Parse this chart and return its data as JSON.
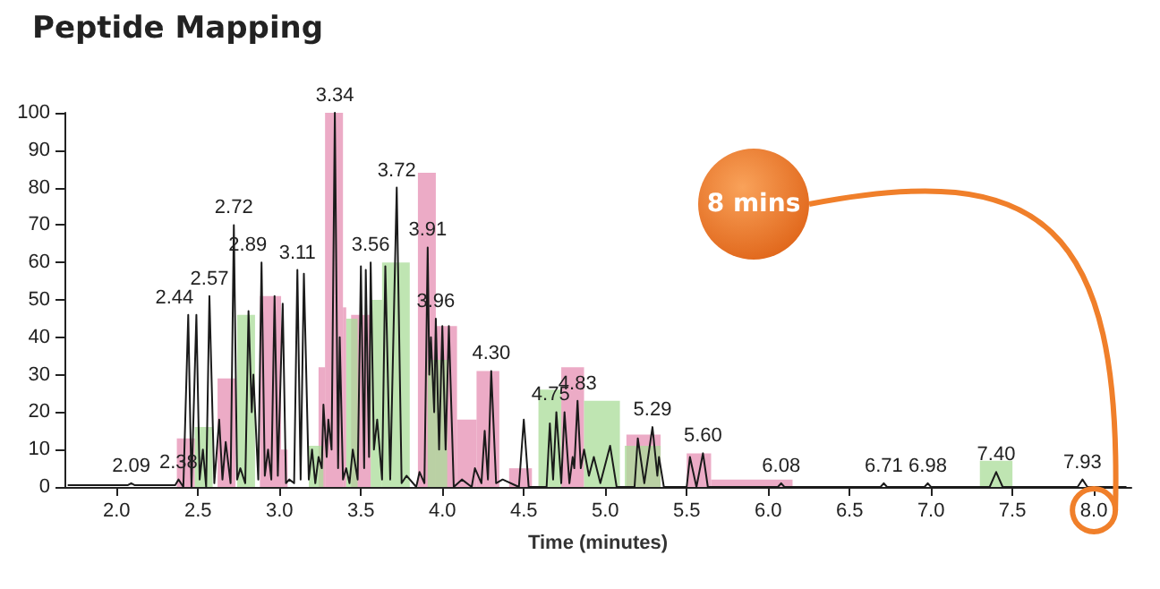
{
  "chart_data": {
    "type": "line",
    "title": "Peptide Mapping",
    "xlabel": "Time (minutes)",
    "xlim": [
      1.68,
      8.23
    ],
    "xticks": [
      {
        "value": 2,
        "label": "2.0"
      },
      {
        "value": 2.5,
        "label": "2.5"
      },
      {
        "value": 3,
        "label": "3.0"
      },
      {
        "value": 3.5,
        "label": "3.5"
      },
      {
        "value": 4,
        "label": "4.0"
      },
      {
        "value": 4.5,
        "label": "4.5"
      },
      {
        "value": 5,
        "label": "5.0"
      },
      {
        "value": 5.5,
        "label": "5.5"
      },
      {
        "value": 6,
        "label": "6.0"
      },
      {
        "value": 6.5,
        "label": "6.5"
      },
      {
        "value": 7,
        "label": "7.0"
      },
      {
        "value": 7.5,
        "label": "7.5"
      },
      {
        "value": 8,
        "label": "8.0"
      }
    ],
    "ylim": [
      0,
      100
    ],
    "yticks": [
      0,
      10,
      20,
      30,
      40,
      50,
      60,
      70,
      80,
      90,
      100
    ],
    "grid": false,
    "marker": "none",
    "line_style": "solid",
    "series": [
      {
        "type": "histogram",
        "color": "#e58fb3",
        "bins": [
          2.37,
          2.48,
          2.62,
          2.73,
          2.88,
          3.01,
          3.05,
          3.24,
          3.28,
          3.39,
          3.41,
          3.44,
          3.56,
          3.85,
          3.96,
          4.09,
          4.21,
          4.35,
          4.41,
          4.55,
          4.73,
          4.87,
          5.13,
          5.34,
          5.5,
          5.65,
          6.15
        ],
        "values": [
          13,
          null,
          29,
          null,
          51,
          10,
          null,
          32,
          100,
          48,
          null,
          46,
          null,
          84,
          43,
          18,
          31,
          null,
          5,
          null,
          32,
          null,
          14,
          null,
          9,
          2
        ]
      },
      {
        "type": "histogram",
        "color": "#a9dc98",
        "bins": [
          2.48,
          2.59,
          2.74,
          2.85,
          3.18,
          3.27,
          3.41,
          3.48,
          3.56,
          3.63,
          3.8,
          3.91,
          4.03,
          4.59,
          4.73,
          4.87,
          5.09,
          5.12,
          5.34,
          7.3,
          7.5
        ],
        "values": [
          16,
          null,
          46,
          null,
          11,
          null,
          45,
          null,
          50,
          60,
          null,
          34,
          null,
          26,
          null,
          23,
          null,
          11,
          null,
          7
        ]
      },
      {
        "type": "line",
        "color": "#1a1a1a",
        "x": [
          1.7,
          2.07,
          2.09,
          2.11,
          2.36,
          2.38,
          2.41,
          2.44,
          2.46,
          2.49,
          2.51,
          2.53,
          2.55,
          2.57,
          2.6,
          2.63,
          2.65,
          2.67,
          2.7,
          2.72,
          2.74,
          2.76,
          2.79,
          2.81,
          2.83,
          2.84,
          2.87,
          2.89,
          2.91,
          2.93,
          2.95,
          2.97,
          2.99,
          3.02,
          3.04,
          3.06,
          3.09,
          3.11,
          3.13,
          3.15,
          3.18,
          3.2,
          3.22,
          3.24,
          3.26,
          3.27,
          3.29,
          3.3,
          3.32,
          3.34,
          3.36,
          3.37,
          3.39,
          3.41,
          3.43,
          3.45,
          3.48,
          3.5,
          3.52,
          3.53,
          3.55,
          3.56,
          3.58,
          3.6,
          3.63,
          3.65,
          3.68,
          3.72,
          3.75,
          3.78,
          3.84,
          3.86,
          3.89,
          3.91,
          3.92,
          3.93,
          3.95,
          3.96,
          3.98,
          4.0,
          4.02,
          4.04,
          4.07,
          4.12,
          4.18,
          4.2,
          4.24,
          4.26,
          4.28,
          4.3,
          4.33,
          4.37,
          4.47,
          4.5,
          4.53,
          4.64,
          4.66,
          4.68,
          4.7,
          4.73,
          4.75,
          4.78,
          4.8,
          4.81,
          4.83,
          4.85,
          4.87,
          4.9,
          4.93,
          4.97,
          5.03,
          5.07,
          5.18,
          5.2,
          5.24,
          5.29,
          5.32,
          5.33,
          5.36,
          5.5,
          5.52,
          5.56,
          5.6,
          5.63,
          6.06,
          6.08,
          6.1,
          6.69,
          6.71,
          6.73,
          6.96,
          6.98,
          7.0,
          7.36,
          7.4,
          7.44,
          7.9,
          7.93,
          7.96,
          8.2
        ],
        "values": [
          0.5,
          0.5,
          1,
          0.5,
          0.5,
          2,
          0,
          46,
          0,
          46,
          2,
          10,
          0,
          51,
          1,
          18,
          2,
          12,
          1,
          70,
          2,
          5,
          1,
          47,
          20,
          30,
          2,
          60,
          3,
          10,
          2,
          51,
          3,
          49,
          1,
          2,
          1,
          58,
          2,
          57,
          2,
          10,
          1,
          8,
          5,
          22,
          8,
          18,
          10,
          100,
          5,
          40,
          2,
          5,
          1,
          10,
          2,
          59,
          5,
          58,
          8,
          60,
          10,
          18,
          2,
          59,
          2,
          80,
          1,
          3,
          0,
          4,
          1,
          64,
          30,
          40,
          20,
          45,
          10,
          43,
          10,
          43,
          0,
          2,
          0,
          5,
          1,
          15,
          2,
          31,
          1,
          2,
          0,
          18,
          0,
          0,
          17,
          2,
          20,
          1,
          20,
          1,
          8,
          5,
          23,
          5,
          10,
          3,
          8,
          1,
          11,
          0,
          0,
          13,
          1,
          16,
          3,
          8,
          0,
          0,
          8,
          0,
          9,
          0,
          0,
          1,
          0,
          0,
          1,
          0,
          0,
          1,
          0,
          0,
          4,
          0,
          0,
          2,
          0,
          0
        ]
      }
    ],
    "annotations": [
      {
        "text": "2.09",
        "x": 2.09,
        "y": 1
      },
      {
        "text": "2.38",
        "x": 2.38,
        "y": 2
      },
      {
        "text": "2.44",
        "x": 2.44,
        "y": 46
      },
      {
        "text": "2.57",
        "x": 2.57,
        "y": 51
      },
      {
        "text": "2.72",
        "x": 2.72,
        "y": 70
      },
      {
        "text": "2.89",
        "x": 2.89,
        "y": 60
      },
      {
        "text": "3.11",
        "x": 3.11,
        "y": 58
      },
      {
        "text": "3.34",
        "x": 3.34,
        "y": 100
      },
      {
        "text": "3.56",
        "x": 3.56,
        "y": 60
      },
      {
        "text": "3.72",
        "x": 3.72,
        "y": 80
      },
      {
        "text": "3.91",
        "x": 3.91,
        "y": 64
      },
      {
        "text": "3.96",
        "x": 3.96,
        "y": 45
      },
      {
        "text": "4.30",
        "x": 4.3,
        "y": 31
      },
      {
        "text": "4.75",
        "x": 4.75,
        "y": 20
      },
      {
        "text": "4.83",
        "x": 4.83,
        "y": 23
      },
      {
        "text": "5.29",
        "x": 5.29,
        "y": 16
      },
      {
        "text": "5.60",
        "x": 5.6,
        "y": 9
      },
      {
        "text": "6.08",
        "x": 6.08,
        "y": 1
      },
      {
        "text": "6.71",
        "x": 6.71,
        "y": 1
      },
      {
        "text": "6.98",
        "x": 6.98,
        "y": 1
      },
      {
        "text": "7.40",
        "x": 7.4,
        "y": 4
      },
      {
        "text": "7.93",
        "x": 7.93,
        "y": 2
      },
      "8 mins"
    ]
  }
}
